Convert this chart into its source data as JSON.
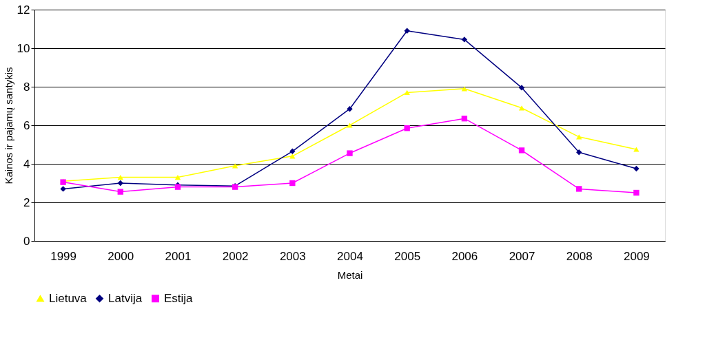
{
  "chart_data": {
    "type": "line",
    "xlabel": "Metai",
    "ylabel": "Kainos ir pajamų santykis",
    "categories": [
      "1999",
      "2000",
      "2001",
      "2002",
      "2003",
      "2004",
      "2005",
      "2006",
      "2007",
      "2008",
      "2009"
    ],
    "series": [
      {
        "name": "Lietuva",
        "color": "#ffff00",
        "marker": "triangle",
        "values": [
          3.1,
          3.3,
          3.3,
          3.9,
          4.4,
          6.0,
          7.7,
          7.9,
          6.9,
          5.4,
          4.75
        ]
      },
      {
        "name": "Latvija",
        "color": "#000080",
        "marker": "diamond",
        "values": [
          2.7,
          3.0,
          2.9,
          2.85,
          4.65,
          6.85,
          10.9,
          10.45,
          7.95,
          4.6,
          3.75
        ]
      },
      {
        "name": "Estija",
        "color": "#ff00ff",
        "marker": "square",
        "values": [
          3.05,
          2.55,
          2.8,
          2.8,
          3.0,
          4.55,
          5.85,
          6.35,
          4.7,
          2.7,
          2.5
        ]
      }
    ],
    "ylim": [
      0,
      12
    ],
    "yticks": [
      0,
      2,
      4,
      6,
      8,
      10,
      12
    ],
    "grid": "y",
    "legend": "bottom"
  }
}
